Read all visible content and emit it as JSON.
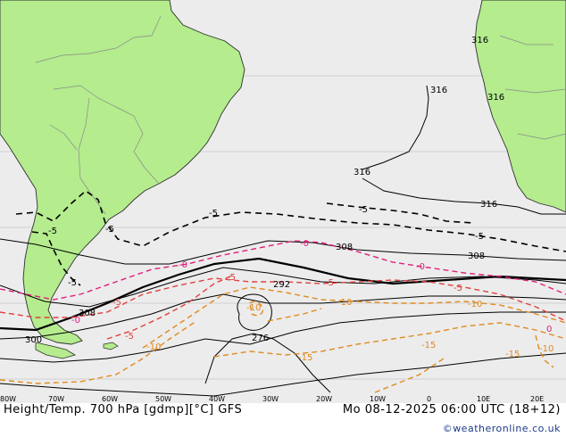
{
  "header": {
    "title_left": "Height/Temp. 700 hPa [gdmp][°C] GFS",
    "title_right": "Mo 08-12-2025 06:00 UTC (18+12)",
    "credit": "©weatheronline.co.uk"
  },
  "colors": {
    "ocean": "#ececec",
    "land": "#b4ec8e",
    "coast": "#303030",
    "border": "#8a8a8a",
    "height_contour": "#000000",
    "temp_warm": "#d0004a",
    "temp_zero": "#e0207a",
    "temp_minus5": "#e04040",
    "temp_cold": "#e08a20"
  },
  "longitude_ticks": [
    "80W",
    "70W",
    "60W",
    "50W",
    "40W",
    "30W",
    "20W",
    "10W",
    "0",
    "10E",
    "20E"
  ],
  "height_labels": [
    "316",
    "316",
    "316",
    "316",
    "316",
    "308",
    "308",
    "308",
    "300",
    "292",
    "276"
  ],
  "temperature_labels": {
    "black_dashed": [
      "-5",
      "-5",
      "-5",
      "-5",
      "-5",
      "-5"
    ],
    "pink": [
      "-0",
      "-0",
      "-0",
      "-0",
      "0"
    ],
    "red": [
      "-5",
      "-5",
      "-5",
      "-5",
      "-5"
    ],
    "orange": [
      "-10",
      "-10",
      "-10",
      "-10",
      "-10",
      "-15",
      "-15",
      "-15"
    ]
  }
}
